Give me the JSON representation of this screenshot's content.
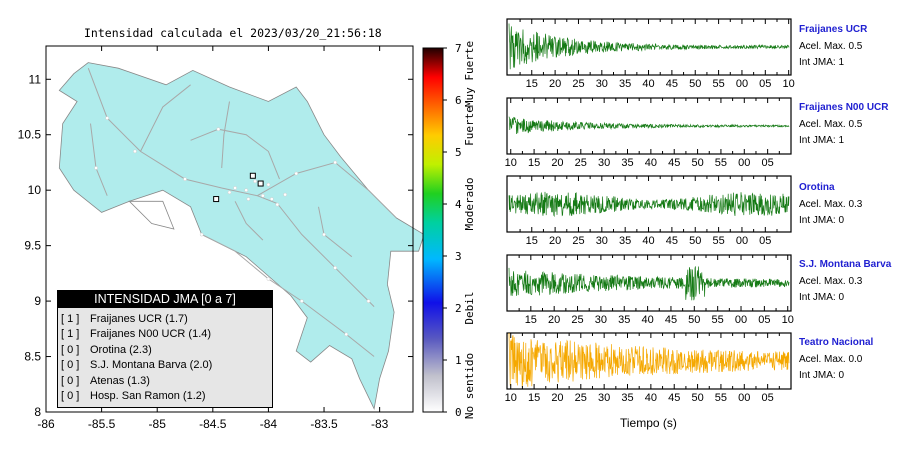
{
  "map": {
    "title": "Intensidad calculada el 2023/03/20_21:56:18",
    "x_ticks": [
      "-86",
      "-85.5",
      "-85",
      "-84.5",
      "-84",
      "-83.5",
      "-83"
    ],
    "y_ticks": [
      "11",
      "10.5",
      "10",
      "9.5",
      "9",
      "8.5",
      "8"
    ],
    "land_color": "#b0ecec",
    "stations": [
      {
        "lon": -84.14,
        "lat": 10.13
      },
      {
        "lon": -84.07,
        "lat": 10.06
      },
      {
        "lon": -84.47,
        "lat": 9.92
      }
    ]
  },
  "scale": {
    "tick_labels": [
      "0",
      "1",
      "2",
      "3",
      "4",
      "5",
      "6",
      "7"
    ],
    "class_labels": [
      "No sentido",
      "Debil",
      "Moderado",
      "Fuerte",
      "Muy Fuerte"
    ]
  },
  "legend": {
    "title": "INTENSIDAD JMA [0 a 7]",
    "items": [
      {
        "level": "[ 1 ]",
        "text": "Fraijanes UCR (1.7)"
      },
      {
        "level": "[ 1 ]",
        "text": "Fraijanes N00 UCR (1.4)"
      },
      {
        "level": "[ 0 ]",
        "text": "Orotina (2.3)"
      },
      {
        "level": "[ 0 ]",
        "text": "S.J. Montana Barva (2.0)"
      },
      {
        "level": "[ 0 ]",
        "text": "Atenas (1.3)"
      },
      {
        "level": "[ 0 ]",
        "text": "Hosp. San Ramon (1.2)"
      }
    ]
  },
  "traces": {
    "xlabel": "Tiempo (s)",
    "panels": [
      {
        "station": "Fraijanes UCR",
        "accel": "Acel. Max. 0.5",
        "int": "Int JMA: 1",
        "color": "#157a15",
        "ticks": [
          "15",
          "20",
          "25",
          "30",
          "35",
          "40",
          "45",
          "50",
          "55",
          "00",
          "05",
          "10"
        ],
        "first_tick_sec": 14.5
      },
      {
        "station": "Fraijanes N00 UCR",
        "accel": "Acel. Max. 0.5",
        "int": "Int JMA: 1",
        "color": "#157a15",
        "ticks": [
          "10",
          "15",
          "20",
          "25",
          "30",
          "35",
          "40",
          "45",
          "50",
          "55",
          "00",
          "05"
        ],
        "first_tick_sec": 10.0
      },
      {
        "station": "Orotina",
        "accel": "Acel. Max. 0.3",
        "int": "Int JMA: 0",
        "color": "#157a15",
        "ticks": [
          "15",
          "20",
          "25",
          "30",
          "35",
          "40",
          "45",
          "50",
          "55",
          "00",
          "05"
        ],
        "first_tick_sec": 14.5
      },
      {
        "station": "S.J. Montana Barva",
        "accel": "Acel. Max. 0.3",
        "int": "Int JMA: 0",
        "color": "#157a15",
        "ticks": [
          "15",
          "20",
          "25",
          "30",
          "35",
          "40",
          "45",
          "50",
          "55",
          "00",
          "05",
          "10"
        ],
        "first_tick_sec": 14.3
      },
      {
        "station": "Teatro Nacional",
        "accel": "Acel. Max. 0.0",
        "int": "Int JMA: 0",
        "color": "#f5a800",
        "ticks": [
          "10",
          "15",
          "20",
          "25",
          "30",
          "35",
          "40",
          "45",
          "50",
          "55",
          "00",
          "05"
        ],
        "first_tick_sec": 10.0
      }
    ]
  }
}
